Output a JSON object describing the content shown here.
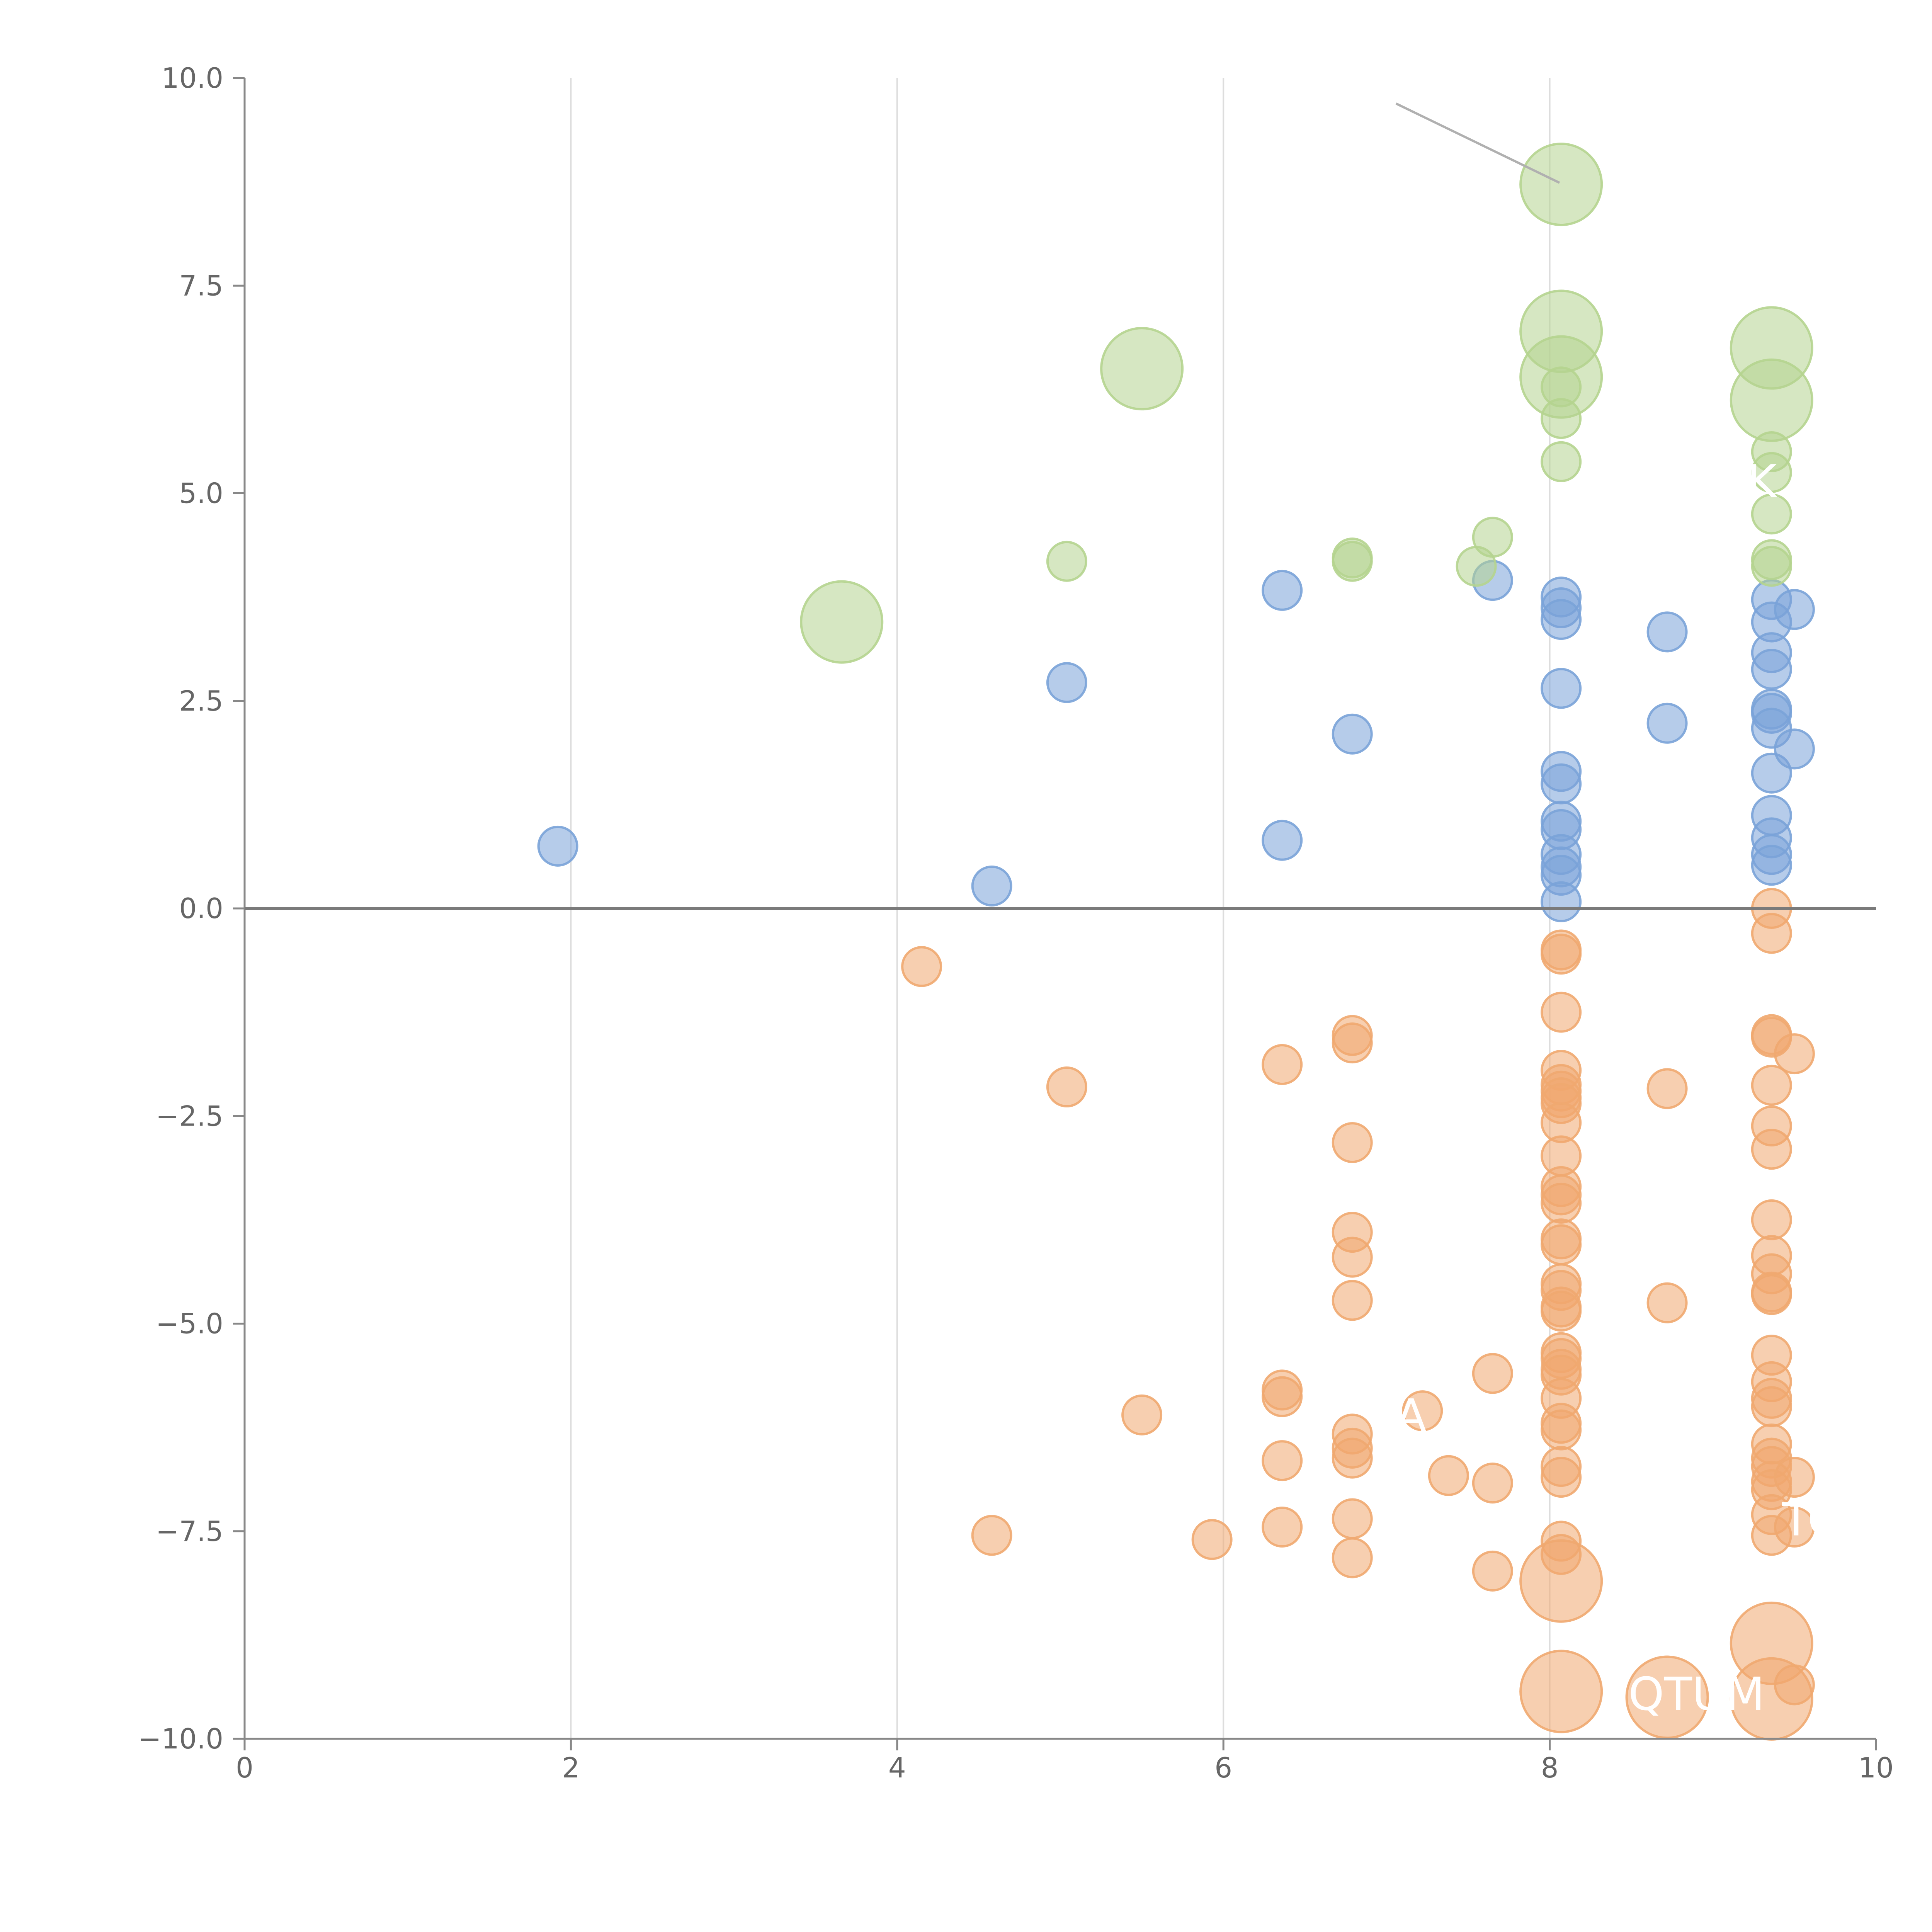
{
  "chart_data": {
    "type": "scatter",
    "title": "",
    "xlabel": "",
    "ylabel": "",
    "xlim": [
      0,
      10
    ],
    "ylim": [
      -10,
      10
    ],
    "x_ticks": [
      0,
      2,
      4,
      6,
      8,
      10
    ],
    "x_tick_labels": [
      "0",
      "2",
      "4",
      "6",
      "8",
      "10"
    ],
    "y_ticks": [
      10,
      7.5,
      5,
      2.5,
      0,
      -2.5,
      -5,
      -7.5,
      -10
    ],
    "y_tick_labels": [
      "10.0",
      "7.5",
      "5.0",
      "2.5",
      "0.0",
      "−2.5",
      "−5.0",
      "−7.5",
      "−10.0"
    ],
    "grid": "vertical",
    "reference_line_y": 0,
    "colors": {
      "blue": "#7aa3d8",
      "orange": "#f0a870",
      "green": "#b5d48f",
      "axis": "#666666",
      "grid": "#dddddd"
    },
    "annotations": [
      {
        "text": "K",
        "x": 9.3,
        "y": 4.95
      },
      {
        "text": "A",
        "x": 7.15,
        "y": -6.3
      },
      {
        "text": "TC",
        "x": 9.6,
        "y": -7.55
      },
      {
        "text": "QTUM",
        "x": 8.9,
        "y": -9.65
      }
    ],
    "series": [
      {
        "name": "blue",
        "color": "#7aa3d8",
        "points": [
          [
            1.92,
            0.75,
            1
          ],
          [
            4.58,
            0.27,
            1
          ],
          [
            5.04,
            2.72,
            1
          ],
          [
            6.36,
            0.82,
            1
          ],
          [
            6.36,
            3.83,
            1
          ],
          [
            6.79,
            2.1,
            1
          ],
          [
            7.65,
            3.95,
            1
          ],
          [
            8.07,
            3.75,
            1
          ],
          [
            8.07,
            3.62,
            1
          ],
          [
            8.07,
            3.48,
            1
          ],
          [
            8.07,
            2.65,
            1
          ],
          [
            8.07,
            1.65,
            1
          ],
          [
            8.07,
            1.5,
            1
          ],
          [
            8.07,
            1.05,
            1
          ],
          [
            8.07,
            0.95,
            1
          ],
          [
            8.07,
            0.65,
            1
          ],
          [
            8.07,
            0.5,
            1
          ],
          [
            8.07,
            0.4,
            1
          ],
          [
            8.07,
            0.08,
            1
          ],
          [
            8.72,
            3.33,
            1
          ],
          [
            8.72,
            2.23,
            1
          ],
          [
            9.36,
            3.72,
            1
          ],
          [
            9.36,
            3.45,
            1
          ],
          [
            9.36,
            3.08,
            1
          ],
          [
            9.36,
            2.88,
            1
          ],
          [
            9.36,
            2.4,
            1
          ],
          [
            9.36,
            2.35,
            1
          ],
          [
            9.36,
            2.17,
            1
          ],
          [
            9.36,
            1.63,
            1
          ],
          [
            9.36,
            1.12,
            1
          ],
          [
            9.36,
            0.85,
            1
          ],
          [
            9.36,
            0.65,
            1
          ],
          [
            9.36,
            0.52,
            1
          ],
          [
            9.5,
            3.6,
            1
          ],
          [
            9.5,
            1.92,
            1
          ]
        ]
      },
      {
        "name": "orange",
        "color": "#f0a870",
        "points": [
          [
            4.15,
            -0.7,
            1
          ],
          [
            4.58,
            -7.55,
            1
          ],
          [
            5.04,
            -2.15,
            1
          ],
          [
            5.5,
            -6.1,
            1
          ],
          [
            5.93,
            -7.6,
            1
          ],
          [
            6.36,
            -1.88,
            1
          ],
          [
            6.36,
            -5.8,
            1
          ],
          [
            6.36,
            -5.88,
            1
          ],
          [
            6.36,
            -6.65,
            1
          ],
          [
            6.36,
            -7.45,
            1
          ],
          [
            6.79,
            -1.53,
            1
          ],
          [
            6.79,
            -1.62,
            1
          ],
          [
            6.79,
            -2.82,
            1
          ],
          [
            6.79,
            -3.9,
            1
          ],
          [
            6.79,
            -4.2,
            1
          ],
          [
            6.79,
            -4.72,
            1
          ],
          [
            6.79,
            -6.33,
            1
          ],
          [
            6.79,
            -6.5,
            1
          ],
          [
            6.79,
            -6.62,
            1
          ],
          [
            6.79,
            -7.35,
            1
          ],
          [
            6.79,
            -7.82,
            1
          ],
          [
            7.22,
            -6.05,
            1
          ],
          [
            7.38,
            -6.83,
            1
          ],
          [
            7.65,
            -5.6,
            1
          ],
          [
            7.65,
            -6.92,
            1
          ],
          [
            7.65,
            -7.98,
            1
          ],
          [
            8.07,
            -0.5,
            1
          ],
          [
            8.07,
            -0.55,
            1
          ],
          [
            8.07,
            -1.25,
            1
          ],
          [
            8.07,
            -1.95,
            1
          ],
          [
            8.07,
            -2.12,
            1
          ],
          [
            8.07,
            -2.2,
            1
          ],
          [
            8.07,
            -2.28,
            1
          ],
          [
            8.07,
            -2.35,
            1
          ],
          [
            8.07,
            -2.58,
            1
          ],
          [
            8.07,
            -2.98,
            1
          ],
          [
            8.07,
            -3.35,
            1
          ],
          [
            8.07,
            -3.45,
            1
          ],
          [
            8.07,
            -3.55,
            1
          ],
          [
            8.07,
            -3.98,
            1
          ],
          [
            8.07,
            -4.05,
            1
          ],
          [
            8.07,
            -4.52,
            1
          ],
          [
            8.07,
            -4.6,
            1
          ],
          [
            8.07,
            -4.8,
            1
          ],
          [
            8.07,
            -4.85,
            1
          ],
          [
            8.07,
            -5.35,
            1
          ],
          [
            8.07,
            -5.42,
            1
          ],
          [
            8.07,
            -5.55,
            1
          ],
          [
            8.07,
            -5.62,
            1
          ],
          [
            8.07,
            -5.9,
            1
          ],
          [
            8.07,
            -6.2,
            1
          ],
          [
            8.07,
            -6.28,
            1
          ],
          [
            8.07,
            -6.72,
            1
          ],
          [
            8.07,
            -6.85,
            1
          ],
          [
            8.07,
            -7.62,
            1
          ],
          [
            8.07,
            -7.78,
            1
          ],
          [
            8.07,
            -8.1,
            2.1
          ],
          [
            8.07,
            -9.43,
            2.1
          ],
          [
            8.72,
            -2.17,
            1
          ],
          [
            8.72,
            -4.75,
            1
          ],
          [
            8.72,
            -9.5,
            2.1
          ],
          [
            9.36,
            0.0,
            1
          ],
          [
            9.36,
            -0.3,
            1
          ],
          [
            9.36,
            -1.52,
            1
          ],
          [
            9.36,
            -1.55,
            1
          ],
          [
            9.36,
            -2.13,
            1
          ],
          [
            9.36,
            -2.62,
            1
          ],
          [
            9.36,
            -2.9,
            1
          ],
          [
            9.36,
            -3.75,
            1
          ],
          [
            9.36,
            -4.18,
            1
          ],
          [
            9.36,
            -4.4,
            1
          ],
          [
            9.36,
            -4.62,
            1
          ],
          [
            9.36,
            -4.65,
            1
          ],
          [
            9.36,
            -5.38,
            1
          ],
          [
            9.36,
            -5.7,
            1
          ],
          [
            9.36,
            -5.9,
            1
          ],
          [
            9.36,
            -6.0,
            1
          ],
          [
            9.36,
            -6.45,
            1
          ],
          [
            9.36,
            -6.62,
            1
          ],
          [
            9.36,
            -6.72,
            1
          ],
          [
            9.36,
            -6.9,
            1
          ],
          [
            9.36,
            -7.0,
            1
          ],
          [
            9.36,
            -7.3,
            1
          ],
          [
            9.36,
            -7.55,
            1
          ],
          [
            9.36,
            -8.85,
            2.1
          ],
          [
            9.36,
            -9.52,
            2.1
          ],
          [
            9.5,
            -1.75,
            1
          ],
          [
            9.5,
            -6.85,
            1
          ],
          [
            9.5,
            -7.45,
            1
          ],
          [
            9.5,
            -9.35,
            1
          ]
        ]
      },
      {
        "name": "green",
        "color": "#b5d48f",
        "points": [
          [
            3.66,
            3.45,
            2.1
          ],
          [
            5.04,
            4.18,
            1
          ],
          [
            5.5,
            6.5,
            2.1
          ],
          [
            6.79,
            4.18,
            1
          ],
          [
            6.79,
            4.22,
            1
          ],
          [
            7.55,
            4.12,
            1
          ],
          [
            7.65,
            4.47,
            1
          ],
          [
            8.07,
            8.72,
            2.1
          ],
          [
            8.07,
            6.95,
            2.1
          ],
          [
            8.07,
            6.4,
            2.1
          ],
          [
            8.07,
            6.28,
            1
          ],
          [
            8.07,
            5.9,
            1
          ],
          [
            8.07,
            5.38,
            1
          ],
          [
            9.36,
            6.75,
            2.1
          ],
          [
            9.36,
            6.12,
            2.1
          ],
          [
            9.36,
            5.5,
            1
          ],
          [
            9.36,
            5.25,
            1
          ],
          [
            9.36,
            4.75,
            1
          ],
          [
            9.36,
            4.2,
            1
          ],
          [
            9.36,
            4.12,
            1
          ]
        ]
      }
    ]
  }
}
